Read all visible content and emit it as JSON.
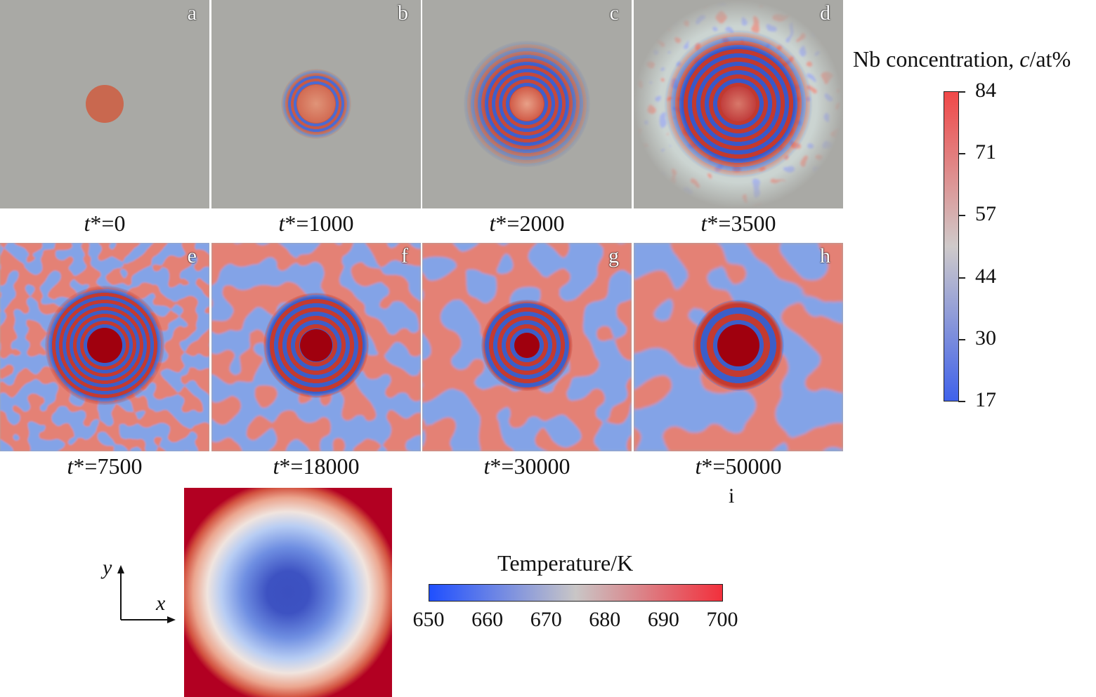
{
  "time_var": "t",
  "time_op": "*=",
  "panels": [
    {
      "letter": "a",
      "time": "0"
    },
    {
      "letter": "b",
      "time": "1000"
    },
    {
      "letter": "c",
      "time": "2000"
    },
    {
      "letter": "d",
      "time": "3500"
    },
    {
      "letter": "e",
      "time": "7500"
    },
    {
      "letter": "f",
      "time": "18000"
    },
    {
      "letter": "g",
      "time": "30000"
    },
    {
      "letter": "h",
      "time": "50000"
    }
  ],
  "panel_i": {
    "letter": "i",
    "axis_x": "x",
    "axis_y": "y"
  },
  "nb_colorbar": {
    "title_prefix": "Nb concentration, ",
    "title_var": "c",
    "title_suffix": "/at%",
    "ticks": [
      "84",
      "71",
      "57",
      "44",
      "30",
      "17"
    ],
    "color_max": "#f04848",
    "color_mid": "#cfcaca",
    "color_min": "#4062ea"
  },
  "temp_colorbar": {
    "title": "Temperature/K",
    "ticks": [
      "650",
      "660",
      "670",
      "680",
      "690",
      "700"
    ],
    "color_min": "#1f4fff",
    "color_mid": "#c9c6c6",
    "color_max": "#f2303c"
  }
}
